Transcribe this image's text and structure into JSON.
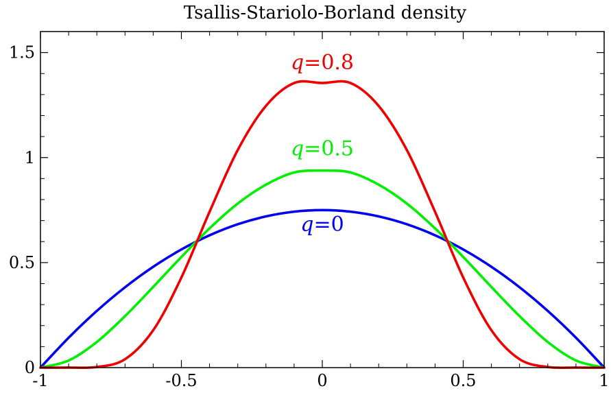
{
  "chart_data": {
    "type": "line",
    "title": "Tsallis-Stariolo-Borland density",
    "xlabel": "",
    "ylabel": "",
    "xlim": [
      -1,
      1
    ],
    "ylim": [
      0,
      1.6
    ],
    "grid": false,
    "x_ticks": [
      {
        "value": -1,
        "label": "-1"
      },
      {
        "value": -0.5,
        "label": "-0.5"
      },
      {
        "value": 0,
        "label": "0"
      },
      {
        "value": 0.5,
        "label": "0.5"
      },
      {
        "value": 1,
        "label": "1"
      }
    ],
    "y_ticks": [
      {
        "value": 0,
        "label": "0"
      },
      {
        "value": 0.5,
        "label": "0.5"
      },
      {
        "value": 1,
        "label": "1"
      },
      {
        "value": 1.5,
        "label": "1.5"
      }
    ],
    "x": [
      -1,
      -0.9,
      -0.8,
      -0.7,
      -0.6,
      -0.5,
      -0.4,
      -0.3,
      -0.2,
      -0.1,
      0,
      0.1,
      0.2,
      0.3,
      0.4,
      0.5,
      0.6,
      0.7,
      0.8,
      0.9,
      1
    ],
    "series": [
      {
        "name": "q = 0",
        "label": {
          "var": "q",
          "eq": "=",
          "val": "0"
        },
        "label_at": [
          0,
          0.65
        ],
        "color": "#0000ee",
        "values": [
          0,
          0.1425,
          0.27,
          0.3825,
          0.48,
          0.5625,
          0.63,
          0.6825,
          0.72,
          0.7425,
          0.75,
          0.7425,
          0.72,
          0.6825,
          0.63,
          0.5625,
          0.48,
          0.3825,
          0.27,
          0.1425,
          0
        ]
      },
      {
        "name": "q = 0.5",
        "label": {
          "var": "q",
          "eq": "=",
          "val": "0.5"
        },
        "label_at": [
          0,
          1.01
        ],
        "color": "#00ee00",
        "values": [
          0,
          0.034,
          0.122,
          0.245,
          0.384,
          0.527,
          0.663,
          0.781,
          0.871,
          0.929,
          0.938,
          0.929,
          0.871,
          0.781,
          0.663,
          0.527,
          0.384,
          0.245,
          0.122,
          0.034,
          0
        ]
      },
      {
        "name": "q = 0.8",
        "label": {
          "var": "q",
          "eq": "=",
          "val": "0.8"
        },
        "label_at": [
          0,
          1.42
        ],
        "color": "#ee0000",
        "values": [
          0,
          0.0001,
          0.003,
          0.04,
          0.178,
          0.429,
          0.742,
          1.036,
          1.246,
          1.355,
          1.355,
          1.355,
          1.246,
          1.036,
          0.742,
          0.429,
          0.178,
          0.04,
          0.003,
          0.0001,
          0
        ]
      }
    ]
  }
}
